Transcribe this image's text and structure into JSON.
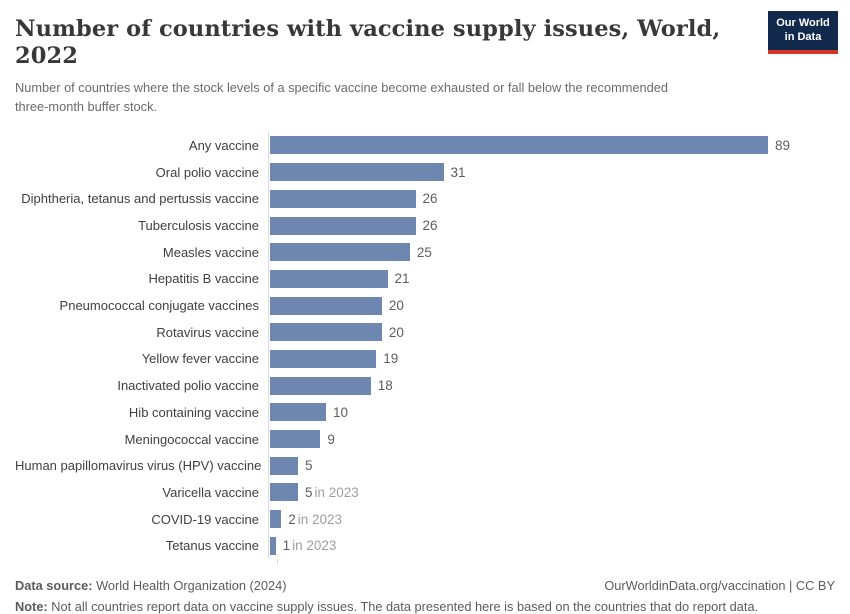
{
  "header": {
    "title": "Number of countries with vaccine supply issues, World, 2022",
    "subtitle": "Number of countries where the stock levels of a specific vaccine become exhausted or fall below the recommended three-month buffer stock.",
    "logo": {
      "line1": "Our World",
      "line2": "in Data"
    }
  },
  "chart_data": {
    "type": "bar",
    "orientation": "horizontal",
    "title": "Number of countries with vaccine supply issues, World, 2022",
    "xlabel": "",
    "ylabel": "",
    "xlim": [
      0,
      89
    ],
    "grid": false,
    "bar_color": "#6d87b1",
    "categories": [
      "Any vaccine",
      "Oral polio vaccine",
      "Diphtheria, tetanus and pertussis vaccine",
      "Tuberculosis vaccine",
      "Measles vaccine",
      "Hepatitis B vaccine",
      "Pneumococcal conjugate vaccines",
      "Rotavirus vaccine",
      "Yellow fever vaccine",
      "Inactivated polio vaccine",
      "Hib containing vaccine",
      "Meningococcal vaccine",
      "Human papillomavirus virus (HPV) vaccine",
      "Varicella vaccine",
      "COVID-19 vaccine",
      "Tetanus vaccine"
    ],
    "values": [
      89,
      31,
      26,
      26,
      25,
      21,
      20,
      20,
      19,
      18,
      10,
      9,
      5,
      5,
      2,
      1
    ],
    "value_suffixes": [
      "",
      "",
      "",
      "",
      "",
      "",
      "",
      "",
      "",
      "",
      "",
      "",
      "",
      "in 2023",
      "in 2023",
      "in 2023"
    ]
  },
  "footer": {
    "source_label": "Data source:",
    "source_text": " World Health Organization (2024)",
    "link_text": "OurWorldinData.org/vaccination | CC BY",
    "note_label": "Note:",
    "note_text": " Not all countries report data on vaccine supply issues. The data presented here is based on the countries that do report data."
  },
  "colors": {
    "bar": "#6d87b1",
    "axis_line": "#dbdbdb",
    "title": "#383838",
    "subtitle": "#6b6b6b",
    "logo_bg": "#12294e",
    "logo_red": "#d13628"
  }
}
